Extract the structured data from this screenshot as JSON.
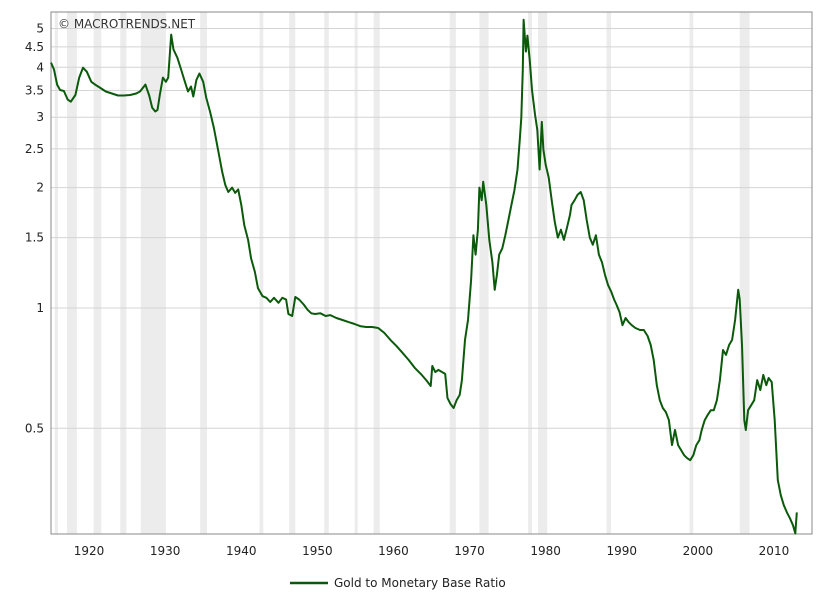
{
  "chart_data": {
    "type": "line",
    "title": "",
    "xlabel": "",
    "ylabel": "",
    "watermark": "© MACROTRENDS.NET",
    "y_scale": "log",
    "xlim": [
      1915,
      2015
    ],
    "ylim": [
      0.272,
      5.5
    ],
    "grid": "horizontal",
    "legend_position": "bottom-center",
    "colors": {
      "line": "#0b5a0b",
      "grid": "#d4d4d4",
      "recession_band": "#ececec",
      "frame": "#8a8a8a"
    },
    "x_ticks": [
      1920,
      1930,
      1940,
      1950,
      1960,
      1970,
      1980,
      1990,
      2000,
      2010
    ],
    "x_tick_labels": [
      "1920",
      "1930",
      "1940",
      "1950",
      "1960",
      "1970",
      "1980",
      "1990",
      "2000",
      "2010"
    ],
    "y_ticks": [
      0.5,
      1,
      1.5,
      2,
      2.5,
      3,
      3.5,
      4,
      4.5,
      5
    ],
    "y_tick_labels": [
      "0.5",
      "1",
      "1.5",
      "2",
      "2.5",
      "3",
      "3.5",
      "4",
      "4.5",
      "5"
    ],
    "shaded_bands": [
      [
        1915.5,
        1915.9
      ],
      [
        1917.1,
        1918.4
      ],
      [
        1920.6,
        1921.6
      ],
      [
        1924.1,
        1924.9
      ],
      [
        1926.8,
        1930.1
      ],
      [
        1934.6,
        1935.5
      ],
      [
        1942.4,
        1942.9
      ],
      [
        1946.3,
        1947.1
      ],
      [
        1950.9,
        1951.5
      ],
      [
        1954.9,
        1955.3
      ],
      [
        1957.4,
        1958.2
      ],
      [
        1967.4,
        1968.2
      ],
      [
        1971.3,
        1972.5
      ],
      [
        1977.7,
        1978.2
      ],
      [
        1979.0,
        1980.2
      ],
      [
        1988.0,
        1988.6
      ],
      [
        1998.9,
        1999.4
      ],
      [
        2005.5,
        2006.8
      ]
    ],
    "series": [
      {
        "name": "Gold to Monetary Base Ratio",
        "x": [
          1915.0,
          1915.4,
          1915.8,
          1916.2,
          1916.7,
          1917.2,
          1917.6,
          1918.2,
          1918.7,
          1919.2,
          1919.7,
          1920.3,
          1920.8,
          1921.4,
          1922.2,
          1923.0,
          1923.8,
          1924.6,
          1925.4,
          1926.2,
          1926.7,
          1927.4,
          1927.9,
          1928.3,
          1928.7,
          1929.0,
          1929.3,
          1929.7,
          1930.1,
          1930.4,
          1930.8,
          1931.1,
          1931.6,
          1932.1,
          1932.6,
          1933.0,
          1933.4,
          1933.7,
          1934.1,
          1934.5,
          1935.0,
          1935.4,
          1935.9,
          1936.4,
          1937.0,
          1937.5,
          1937.9,
          1938.3,
          1938.8,
          1939.2,
          1939.6,
          1940.0,
          1940.4,
          1940.9,
          1941.3,
          1941.8,
          1942.2,
          1942.8,
          1943.3,
          1943.8,
          1944.3,
          1944.9,
          1945.4,
          1945.9,
          1946.2,
          1946.7,
          1947.1,
          1947.6,
          1948.2,
          1948.7,
          1949.2,
          1949.7,
          1950.4,
          1951.1,
          1951.7,
          1952.5,
          1953.3,
          1954.1,
          1954.9,
          1955.7,
          1956.4,
          1957.2,
          1958.0,
          1958.8,
          1959.6,
          1960.4,
          1961.2,
          1962.0,
          1962.8,
          1963.6,
          1964.3,
          1964.9,
          1965.1,
          1965.5,
          1965.9,
          1966.4,
          1966.8,
          1967.1,
          1967.5,
          1967.9,
          1968.3,
          1968.7,
          1969.0,
          1969.4,
          1969.8,
          1970.2,
          1970.5,
          1970.8,
          1971.1,
          1971.3,
          1971.6,
          1971.8,
          1972.2,
          1972.6,
          1973.0,
          1973.3,
          1973.6,
          1973.9,
          1974.3,
          1974.7,
          1975.1,
          1975.5,
          1975.9,
          1976.3,
          1976.6,
          1976.8,
          1977.0,
          1977.1,
          1977.4,
          1977.6,
          1977.9,
          1978.2,
          1978.6,
          1978.9,
          1979.2,
          1979.5,
          1979.7,
          1980.0,
          1980.4,
          1980.8,
          1981.2,
          1981.6,
          1982.0,
          1982.4,
          1982.8,
          1983.2,
          1983.4,
          1983.8,
          1984.2,
          1984.6,
          1985.0,
          1985.4,
          1985.8,
          1986.2,
          1986.6,
          1987.0,
          1987.4,
          1987.8,
          1988.2,
          1988.6,
          1989.0,
          1989.3,
          1989.7,
          1990.1,
          1990.5,
          1990.9,
          1991.3,
          1991.8,
          1992.4,
          1992.9,
          1993.4,
          1993.8,
          1994.2,
          1994.6,
          1995.0,
          1995.4,
          1995.8,
          1996.2,
          1996.6,
          1997.0,
          1997.4,
          1997.8,
          1998.2,
          1998.6,
          1999.0,
          1999.4,
          1999.8,
          2000.2,
          2000.5,
          2000.9,
          2001.3,
          2001.7,
          2002.1,
          2002.5,
          2002.9,
          2003.3,
          2003.7,
          2004.1,
          2004.5,
          2004.9,
          2005.3,
          2005.5,
          2005.8,
          2006.1,
          2006.3,
          2006.6,
          2007.0,
          2007.4,
          2007.8,
          2008.2,
          2008.6,
          2009.0,
          2009.3,
          2009.7,
          2010.1,
          2010.5,
          2010.9,
          2011.3,
          2011.7,
          2012.1,
          2012.5,
          2012.8,
          2013.0
        ],
        "y": [
          4.11,
          3.95,
          3.62,
          3.51,
          3.49,
          3.32,
          3.28,
          3.41,
          3.77,
          3.99,
          3.9,
          3.68,
          3.62,
          3.56,
          3.48,
          3.44,
          3.4,
          3.4,
          3.41,
          3.44,
          3.48,
          3.62,
          3.4,
          3.17,
          3.1,
          3.13,
          3.41,
          3.77,
          3.68,
          3.77,
          4.83,
          4.43,
          4.23,
          3.95,
          3.68,
          3.48,
          3.58,
          3.38,
          3.72,
          3.86,
          3.68,
          3.36,
          3.1,
          2.82,
          2.46,
          2.19,
          2.03,
          1.95,
          2.0,
          1.94,
          1.98,
          1.81,
          1.61,
          1.48,
          1.33,
          1.23,
          1.12,
          1.07,
          1.06,
          1.035,
          1.06,
          1.03,
          1.06,
          1.05,
          0.966,
          0.955,
          1.065,
          1.05,
          1.02,
          0.99,
          0.97,
          0.966,
          0.97,
          0.955,
          0.96,
          0.944,
          0.933,
          0.922,
          0.912,
          0.9,
          0.896,
          0.896,
          0.891,
          0.866,
          0.832,
          0.803,
          0.772,
          0.741,
          0.708,
          0.684,
          0.66,
          0.638,
          0.716,
          0.691,
          0.7,
          0.691,
          0.684,
          0.595,
          0.575,
          0.562,
          0.588,
          0.606,
          0.66,
          0.832,
          0.933,
          1.175,
          1.52,
          1.36,
          1.57,
          2.0,
          1.86,
          2.07,
          1.81,
          1.48,
          1.3,
          1.11,
          1.21,
          1.36,
          1.41,
          1.52,
          1.66,
          1.81,
          1.97,
          2.22,
          2.64,
          2.99,
          3.95,
          5.26,
          4.38,
          4.8,
          4.18,
          3.51,
          3.05,
          2.79,
          2.22,
          2.92,
          2.49,
          2.28,
          2.12,
          1.86,
          1.64,
          1.5,
          1.57,
          1.48,
          1.59,
          1.71,
          1.81,
          1.86,
          1.92,
          1.95,
          1.86,
          1.66,
          1.5,
          1.44,
          1.52,
          1.36,
          1.3,
          1.21,
          1.14,
          1.1,
          1.05,
          1.02,
          0.977,
          0.906,
          0.944,
          0.922,
          0.906,
          0.891,
          0.881,
          0.881,
          0.851,
          0.808,
          0.741,
          0.641,
          0.588,
          0.562,
          0.549,
          0.524,
          0.454,
          0.495,
          0.454,
          0.441,
          0.428,
          0.421,
          0.416,
          0.428,
          0.454,
          0.467,
          0.495,
          0.524,
          0.54,
          0.555,
          0.555,
          0.588,
          0.66,
          0.785,
          0.763,
          0.808,
          0.832,
          0.933,
          1.11,
          1.05,
          0.808,
          0.524,
          0.495,
          0.555,
          0.571,
          0.588,
          0.66,
          0.623,
          0.68,
          0.641,
          0.668,
          0.653,
          0.524,
          0.371,
          0.34,
          0.321,
          0.308,
          0.298,
          0.286,
          0.273,
          0.308
        ]
      }
    ]
  }
}
